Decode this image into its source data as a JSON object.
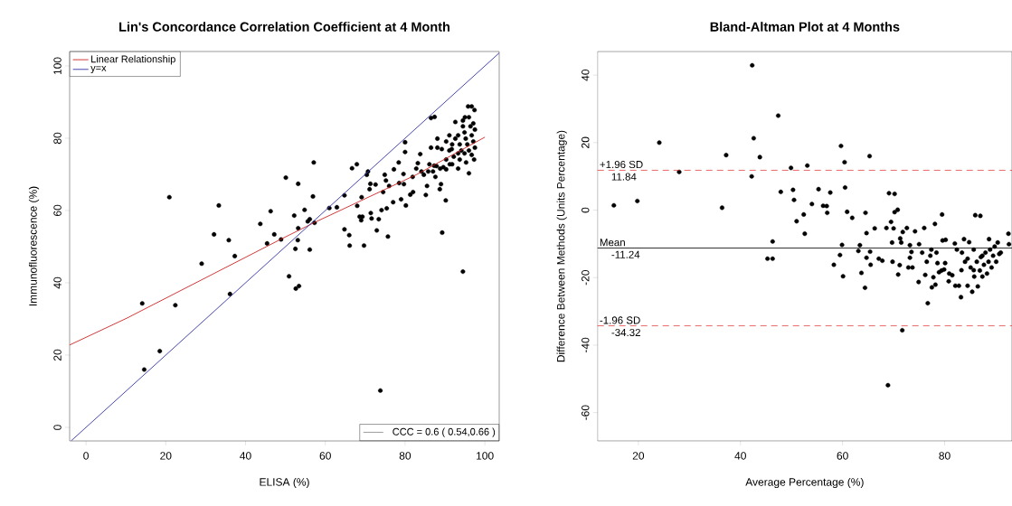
{
  "chart_data": [
    {
      "type": "scatter",
      "title": "Lin's Concordance Correlation Coefficient at 4 Month",
      "xlabel": "ELISA (%)",
      "ylabel": "Immunofluorescence (%)",
      "xlim": [
        -4.1,
        103.6
      ],
      "ylim": [
        -3.75,
        104
      ],
      "xticks": [
        0,
        20,
        40,
        60,
        80,
        100
      ],
      "yticks": [
        0,
        20,
        40,
        60,
        80,
        100
      ],
      "legend": "top left",
      "annotations": [
        "CCC = 0.6 ( 0.54,0.66 )"
      ],
      "series": [
        {
          "color": "#000000",
          "marker": "circle",
          "x": [
            14.1,
            14.6,
            18.5,
            20.9,
            22.4,
            29.0,
            32.1,
            33.3,
            35.8,
            36.1,
            37.3,
            43.7,
            45.4,
            46.3,
            47.2,
            48.9,
            50.1,
            50.9,
            52.2,
            52.5,
            52.6,
            53.1,
            53.2,
            53.4,
            53.2,
            54.8,
            55.6,
            56.1,
            56.1,
            56.9,
            57.1,
            57.3,
            61.0,
            62.9,
            64.8,
            64.8,
            66.0,
            66.1,
            66.7,
            67.9,
            68.0,
            68.6,
            69.0,
            69.3,
            69.1,
            69.7,
            70.4,
            70.7,
            71.1,
            71.3,
            71.4,
            71.6,
            72.6,
            72.9,
            73.4,
            73.8,
            74.1,
            74.5,
            74.9,
            75.2,
            75.4,
            75.7,
            76.0,
            77.0,
            77.2,
            78.4,
            78.5,
            79.0,
            79.6,
            79.7,
            80.0,
            80.0,
            80.2,
            81.3,
            81.9,
            82.0,
            82.8,
            83.2,
            83.8,
            84.1,
            84.7,
            85.2,
            85.5,
            85.8,
            86.1,
            86.5,
            87.4,
            87.0,
            87.6,
            87.9,
            88.7,
            89.0,
            89.3,
            90.2,
            90.3,
            91.2,
            91.7,
            92.6,
            93.3,
            94.5,
            95.0,
            95.3,
            95.8,
            96.7,
            97.4,
            96.0,
            97.3,
            88.1,
            89.2,
            90.3,
            91.1,
            91.8,
            92.6,
            93.3,
            93.7,
            94.1,
            94.5,
            94.9,
            95.2,
            95.6,
            96.0,
            96.4,
            96.7,
            97.1,
            97.5,
            97.1,
            94.9,
            93.3,
            92.2,
            90.3,
            88.8,
            87.3,
            86.5,
            88.1,
            97.5,
            96.0,
            94.5,
            93.7,
            91.8,
            89.6,
            91.1,
            96.7
          ],
          "values": [
            34.3,
            16,
            21.1,
            63.7,
            33.8,
            45.3,
            53.4,
            61.4,
            51.8,
            36.9,
            47.4,
            56.3,
            50.9,
            59.8,
            53.4,
            52,
            69.1,
            41.8,
            58.6,
            49.4,
            38.4,
            51.8,
            67.4,
            39.1,
            55.1,
            60.2,
            57,
            57.6,
            49.2,
            63.9,
            73.3,
            56.6,
            60.7,
            60.9,
            64.2,
            54.8,
            53.2,
            50.3,
            71.7,
            72.8,
            61.3,
            58.3,
            57.3,
            58.3,
            63.7,
            50.3,
            69.9,
            70.8,
            65.9,
            67.4,
            59.3,
            57.8,
            67.2,
            54.5,
            57.6,
            10.2,
            60.1,
            65.1,
            69.9,
            68.3,
            60.6,
            52.8,
            66.8,
            62.3,
            71.4,
            73.3,
            67.6,
            63.1,
            70.1,
            67.3,
            76.2,
            78.9,
            61.4,
            64.4,
            69.3,
            65.1,
            71.6,
            73.1,
            75.6,
            70.8,
            69.9,
            64.3,
            66.8,
            70.8,
            72.8,
            85.6,
            85.9,
            70.8,
            69.3,
            72.3,
            65.9,
            67.3,
            53.9,
            62.8,
            71.4,
            72.8,
            77,
            84.5,
            71.6,
            43.1,
            85.8,
            73.3,
            88.8,
            88.8,
            87.8,
            70.3,
            74.1,
            77.4,
            77,
            79.1,
            76.6,
            78.3,
            79.9,
            80.8,
            78.3,
            76.6,
            83.3,
            81.6,
            79.9,
            78.3,
            76.6,
            83.3,
            80.8,
            79.1,
            77.4,
            84.1,
            75.8,
            75.8,
            74.9,
            74.1,
            71.6,
            72.4,
            77.4,
            79.9,
            82.4,
            85.8,
            84.9,
            74.1,
            72.8,
            72,
            80.8,
            75.4
          ]
        },
        {
          "type": "line",
          "name": "Linear Relationship",
          "color": "#cc2222",
          "marker": "none",
          "x": [
            -4.1,
            10.2,
            48.75,
            57.1,
            82.8,
            100
          ],
          "values": [
            22.8,
            30.2,
            52,
            56.6,
            69.9,
            80.3
          ]
        },
        {
          "type": "line",
          "name": "y=x",
          "color": "#3333aa",
          "marker": "none",
          "x": [
            -3.7,
            103.6
          ],
          "values": [
            -3.7,
            103.6
          ]
        }
      ]
    },
    {
      "type": "scatter",
      "title": "Bland-Altman Plot at 4 Months",
      "xlabel": "Average Percentage (%)",
      "ylabel": "Difference Between Methods (Units Percentage)",
      "xlim": [
        12,
        93.2
      ],
      "ylim": [
        -68.4,
        47
      ],
      "xticks": [
        20,
        40,
        60,
        80
      ],
      "yticks": [
        -60,
        -40,
        -20,
        0,
        20,
        40
      ],
      "annotations": [
        {
          "text": "11.84",
          "y": 11.84
        },
        {
          "text": "-11.24",
          "y": -11.24
        },
        {
          "text": "-34.32",
          "y": -34.32
        }
      ],
      "ref_lines": [
        {
          "axis": "y",
          "value": 11.84,
          "label": "+1.96 SD",
          "color": "#dd2222",
          "line_style": "dashed"
        },
        {
          "axis": "y",
          "value": -11.24,
          "label": "Mean",
          "color": "#000000",
          "line_style": "solid"
        },
        {
          "axis": "y",
          "value": -34.32,
          "label": "-1.96 SD",
          "color": "#dd2222",
          "line_style": "dashed"
        }
      ],
      "series": [
        {
          "color": "#000000",
          "marker": "circle",
          "x": [
            15.2,
            19.8,
            24.1,
            28.0,
            36.4,
            37.2,
            42.2,
            42.3,
            42.6,
            43.8,
            45.3,
            46.3,
            46.3,
            47.4,
            47.9,
            49.9,
            50.3,
            50.5,
            51.0,
            52.4,
            52.6,
            53.1,
            54.0,
            55.3,
            56.2,
            56.9,
            57.0,
            57.6,
            58.3,
            59.5,
            59.7,
            59.9,
            60.1,
            60.4,
            60.5,
            60.9,
            61.9,
            63.1,
            63.4,
            63.7,
            64.4,
            64.5,
            64.7,
            64.7,
            65.3,
            65.4,
            65.5,
            66.3,
            67.1,
            67.8,
            68.6,
            68.9,
            69.1,
            69.5,
            69.7,
            69.8,
            70.0,
            70.2,
            70.2,
            70.8,
            70.9,
            71.2,
            71.3,
            71.5,
            71.7,
            71.8,
            72.6,
            72.9,
            73.2,
            73.2,
            73.5,
            73.7,
            74.2,
            74.9,
            75.0,
            75.6,
            76.0,
            76.2,
            76.5,
            76.7,
            77.2,
            77.4,
            77.5,
            77.8,
            78.1,
            78.2,
            78.4,
            78.6,
            78.9,
            79.4,
            79.5,
            79.6,
            79.9,
            80.1,
            80.2,
            80.8,
            80.9,
            81.5,
            82.0,
            82.1,
            82.4,
            82.8,
            83.2,
            83.3,
            83.4,
            83.8,
            84.0,
            84.5,
            84.8,
            85.1,
            85.4,
            85.7,
            86.0,
            87.0,
            85.8,
            86.3,
            86.5,
            86.9,
            87.1,
            87.4,
            87.7,
            88.0,
            88.3,
            88.6,
            88.7,
            88.9,
            89.2,
            89.5,
            89.8,
            90.1,
            90.4,
            90.7,
            91.0,
            92.5,
            92.6,
            84.5,
            85.7,
            87.4
          ],
          "values": [
            1.4,
            2.7,
            20,
            11.3,
            0.7,
            16.3,
            10,
            42.9,
            21.3,
            15.7,
            -14.4,
            -14.4,
            -9.3,
            28,
            5.4,
            12.5,
            6,
            3,
            -3.3,
            -1.3,
            -7,
            13.2,
            1.8,
            6.2,
            1.3,
            1.2,
            -0.8,
            5.2,
            -16.2,
            -13.3,
            19,
            -10.3,
            -19.6,
            14.2,
            6.7,
            -0.5,
            -2.3,
            -12.1,
            -10.4,
            -18.6,
            -23,
            -0.8,
            -6.8,
            -14.1,
            16,
            -12.3,
            -16.2,
            -5.4,
            -14.4,
            -15,
            -5.3,
            -51.9,
            5,
            -3.5,
            -9.6,
            -15.3,
            -5.4,
            4.8,
            -0.6,
            0.1,
            -19.1,
            -16.3,
            -8.4,
            -9.6,
            -35.6,
            -6.5,
            -5.3,
            -17,
            -10.4,
            -14.1,
            -12.4,
            -17,
            -6.3,
            -21.3,
            -10.1,
            -12.6,
            -5.3,
            -19.2,
            -15.3,
            -27.6,
            -13.5,
            -11.7,
            -22.9,
            -19.9,
            -4.1,
            -22.1,
            -12.6,
            -15.7,
            -18.4,
            -17.9,
            -1.3,
            -9,
            -17.6,
            -15.7,
            -8.8,
            -21.1,
            -18.8,
            -19.3,
            -9.9,
            -22.4,
            -11.7,
            -22.4,
            -25.8,
            -17.8,
            -12.6,
            -8.6,
            -15.3,
            -22.4,
            -9.5,
            -17,
            -24.2,
            -11.7,
            -1.5,
            -1.7,
            -19.7,
            -15.3,
            -22.6,
            -17.9,
            -13.9,
            -19.7,
            -16.2,
            -12.6,
            -18.8,
            -15.3,
            -8.6,
            -11.7,
            -17,
            -13.5,
            -10.8,
            -15.3,
            -9.6,
            -13,
            -12.6,
            -7,
            -10.1,
            -14.4,
            -17.8,
            -13.5
          ]
        }
      ]
    }
  ]
}
